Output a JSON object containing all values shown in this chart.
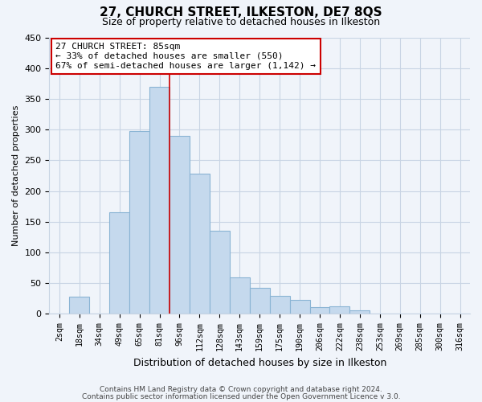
{
  "title": "27, CHURCH STREET, ILKESTON, DE7 8QS",
  "subtitle": "Size of property relative to detached houses in Ilkeston",
  "xlabel": "Distribution of detached houses by size in Ilkeston",
  "ylabel": "Number of detached properties",
  "bar_labels": [
    "2sqm",
    "18sqm",
    "34sqm",
    "49sqm",
    "65sqm",
    "81sqm",
    "96sqm",
    "112sqm",
    "128sqm",
    "143sqm",
    "159sqm",
    "175sqm",
    "190sqm",
    "206sqm",
    "222sqm",
    "238sqm",
    "253sqm",
    "269sqm",
    "285sqm",
    "300sqm",
    "316sqm"
  ],
  "bar_values": [
    0,
    28,
    0,
    165,
    297,
    370,
    290,
    228,
    135,
    60,
    42,
    30,
    23,
    11,
    13,
    6,
    1,
    0,
    0,
    0,
    0
  ],
  "bar_color": "#c5d9ed",
  "bar_edge_color": "#8ab4d4",
  "vline_x_index": 5,
  "vline_color": "#cc0000",
  "ylim": [
    0,
    450
  ],
  "annotation_text": "27 CHURCH STREET: 85sqm\n← 33% of detached houses are smaller (550)\n67% of semi-detached houses are larger (1,142) →",
  "annotation_box_color": "#ffffff",
  "annotation_box_edge": "#cc0000",
  "footer1": "Contains HM Land Registry data © Crown copyright and database right 2024.",
  "footer2": "Contains public sector information licensed under the Open Government Licence v 3.0.",
  "title_fontsize": 11,
  "subtitle_fontsize": 9,
  "ylabel_fontsize": 8,
  "xlabel_fontsize": 9,
  "ytick_interval": 50,
  "background_color": "#f0f4fa",
  "plot_bg_color": "#f0f4fa",
  "grid_color": "#c8d4e4",
  "annotation_fontsize": 8
}
